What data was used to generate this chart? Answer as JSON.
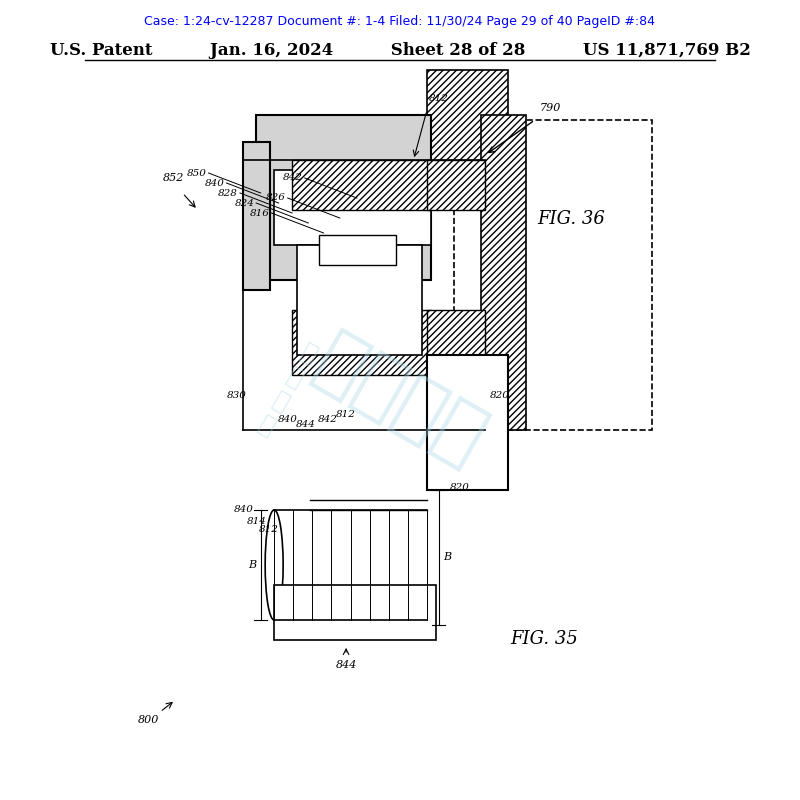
{
  "bg_color": "#ffffff",
  "header_text": "Case: 1:24-cv-12287 Document #: 1-4 Filed: 11/30/24 Page 29 of 40 PageID #:84",
  "header_color": "#0000ff",
  "header_fontsize": 9,
  "patent_line": "U.S. Patent          Jan. 16, 2024          Sheet 28 of 28          US 11,871,769 B2",
  "patent_fontsize": 12,
  "watermark_text": "家美之托",
  "watermark_color": "#add8e6",
  "watermark_alpha": 0.4,
  "fig36_label": "FIG. 36",
  "fig35_label": "FIG. 35"
}
